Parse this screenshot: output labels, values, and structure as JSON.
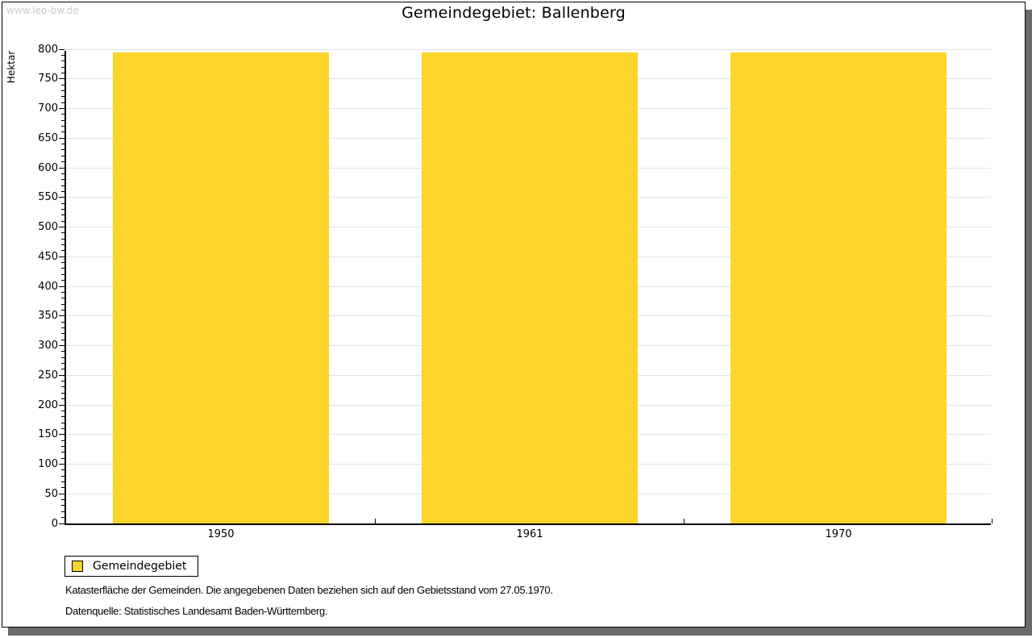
{
  "watermark": "www.leo-bw.de",
  "title": "Gemeindegebiet: Ballenberg",
  "legend": {
    "items": [
      {
        "label": "Gemeindegebiet",
        "color": "#FCD52B"
      }
    ]
  },
  "footnotes": {
    "line1": "Katasterfläche der Gemeinden. Die angegebenen Daten beziehen sich auf den Gebietsstand vom 27.05.1970.",
    "line2": "Datenquelle: Statistisches Landesamt Baden-Württemberg."
  },
  "chart_data": {
    "type": "bar",
    "title": "Gemeindegebiet: Ballenberg",
    "categories": [
      "1950",
      "1961",
      "1970"
    ],
    "series": [
      {
        "name": "Gemeindegebiet",
        "color": "#FCD52B",
        "values": [
          795,
          795,
          795
        ]
      }
    ],
    "xlabel": "",
    "ylabel": "Hektar",
    "ylim": [
      0,
      800
    ],
    "y_major_step": 50,
    "y_minor_step": 10,
    "y_ticks": [
      0,
      50,
      100,
      150,
      200,
      250,
      300,
      350,
      400,
      450,
      500,
      550,
      600,
      650,
      700,
      750,
      800
    ],
    "grid": true,
    "gridline_color": "#E3E3E3",
    "legend_position": "bottom-left",
    "bar_width_ratio": 0.7
  }
}
